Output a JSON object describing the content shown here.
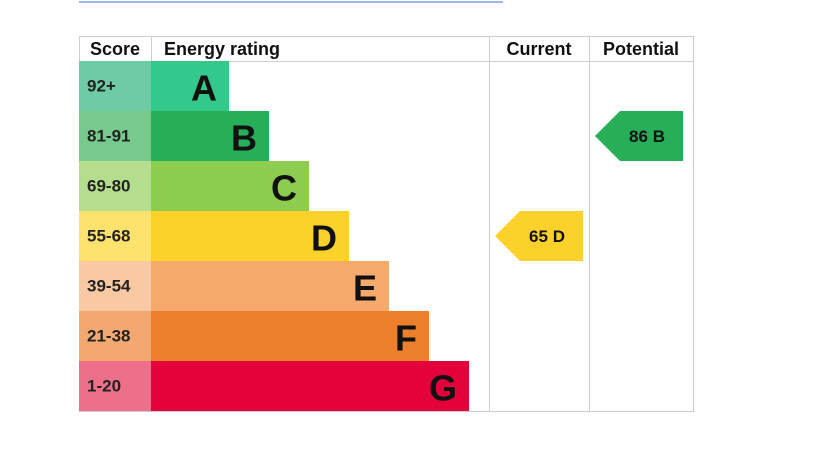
{
  "header": {
    "score": "Score",
    "rating": "Energy rating",
    "current": "Current",
    "potential": "Potential"
  },
  "bands": [
    {
      "score": "92+",
      "letter": "A"
    },
    {
      "score": "81-91",
      "letter": "B"
    },
    {
      "score": "69-80",
      "letter": "C"
    },
    {
      "score": "55-68",
      "letter": "D"
    },
    {
      "score": "39-54",
      "letter": "E"
    },
    {
      "score": "21-38",
      "letter": "F"
    },
    {
      "score": "1-20",
      "letter": "G"
    }
  ],
  "current": {
    "value": 65,
    "letter": "D"
  },
  "potential": {
    "value": 86,
    "letter": "B"
  }
}
